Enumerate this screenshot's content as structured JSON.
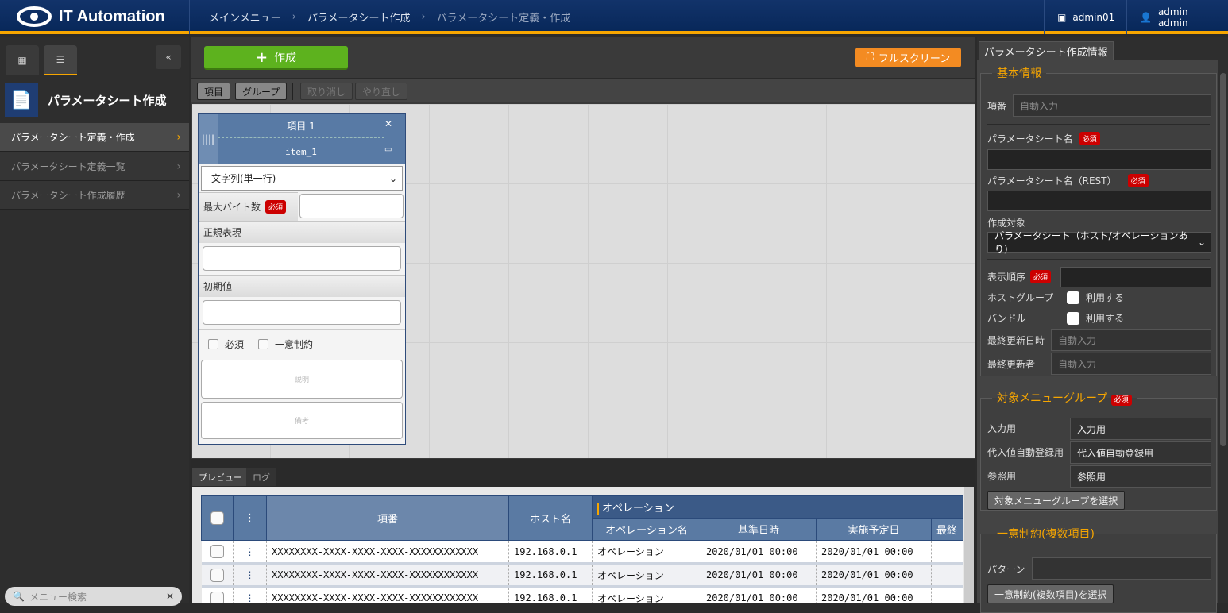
{
  "header": {
    "app_title": "IT Automation",
    "breadcrumb": [
      "メインメニュー",
      "パラメータシート作成",
      "パラメータシート定義・作成"
    ],
    "workspace": "admin01",
    "user": "admin admin"
  },
  "sidebar": {
    "title": "パラメータシート作成",
    "items": [
      {
        "label": "パラメータシート定義・作成",
        "active": true
      },
      {
        "label": "パラメータシート定義一覧"
      },
      {
        "label": "パラメータシート作成履歴"
      }
    ],
    "search_placeholder": "メニュー検索"
  },
  "toolbar": {
    "create": "作成",
    "fullscreen": "フルスクリーン",
    "item": "項目",
    "group": "グループ",
    "undo": "取り消し",
    "redo": "やり直し"
  },
  "card": {
    "title": "項目 1",
    "rest_name": "item_1",
    "type": "文字列(単一行)",
    "max_bytes": "最大バイト数",
    "required_badge": "必須",
    "regex": "正規表現",
    "default": "初期値",
    "required": "必須",
    "unique": "一意制約",
    "description": "説明",
    "remarks": "備考"
  },
  "preview": {
    "tabs": [
      "プレビュー",
      "ログ"
    ],
    "headers": {
      "no": "項番",
      "host": "ホスト名",
      "operation": "オペレーション",
      "op_name": "オペレーション名",
      "base_date": "基準日時",
      "scheduled": "実施予定日",
      "last": "最終"
    },
    "rows": [
      {
        "no": "XXXXXXXX-XXXX-XXXX-XXXX-XXXXXXXXXXXX",
        "host": "192.168.0.1",
        "op": "オペレーション",
        "base": "2020/01/01 00:00",
        "sched": "2020/01/01 00:00"
      },
      {
        "no": "XXXXXXXX-XXXX-XXXX-XXXX-XXXXXXXXXXXX",
        "host": "192.168.0.1",
        "op": "オペレーション",
        "base": "2020/01/01 00:00",
        "sched": "2020/01/01 00:00"
      },
      {
        "no": "XXXXXXXX-XXXX-XXXX-XXXX-XXXXXXXXXXXX",
        "host": "192.168.0.1",
        "op": "オペレーション",
        "base": "2020/01/01 00:00",
        "sched": "2020/01/01 00:00"
      }
    ]
  },
  "info": {
    "tab": "パラメータシート作成情報",
    "basic": "基本情報",
    "no_label": "項番",
    "auto": "自動入力",
    "name": "パラメータシート名",
    "name_rest": "パラメータシート名（REST）",
    "required": "必須",
    "target": "作成対象",
    "target_value": "パラメータシート（ホスト/オペレーションあり）",
    "order": "表示順序",
    "hostgroup": "ホストグループ",
    "bundle": "バンドル",
    "use": "利用する",
    "updated": "最終更新日時",
    "updater": "最終更新者",
    "menu_group": "対象メニューグループ",
    "input": "入力用",
    "subst": "代入値自動登録用",
    "ref": "参照用",
    "select_group": "対象メニューグループを選択",
    "unique": "一意制約(複数項目)",
    "pattern": "パターン",
    "select_unique": "一意制約(複数項目)を選択"
  },
  "colors": {
    "accent": "#f7a600",
    "create": "#5db21e",
    "fullscreen": "#f38b22",
    "header": "#0d2b5e"
  }
}
